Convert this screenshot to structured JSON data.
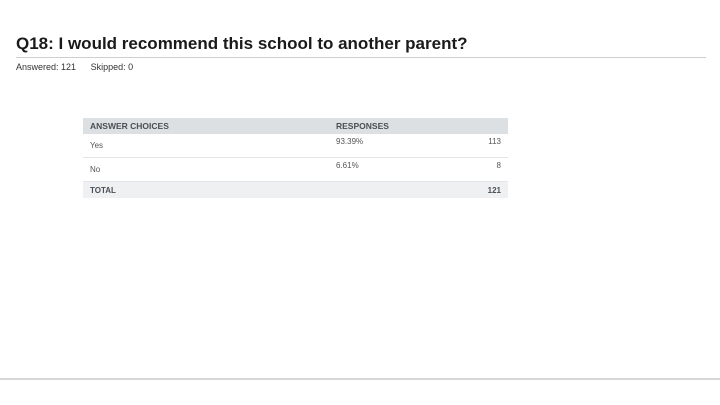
{
  "question": {
    "title": "Q18: I would recommend this school to another parent?",
    "answered": "Answered: 121",
    "skipped": "Skipped: 0"
  },
  "table": {
    "headers": {
      "choices": "ANSWER CHOICES",
      "responses": "RESPONSES"
    },
    "rows": [
      {
        "choice": "Yes",
        "percent": "93.39%",
        "count": "113"
      },
      {
        "choice": "No",
        "percent": "6.61%",
        "count": "8"
      }
    ],
    "total": {
      "label": "TOTAL",
      "count": "121"
    }
  }
}
